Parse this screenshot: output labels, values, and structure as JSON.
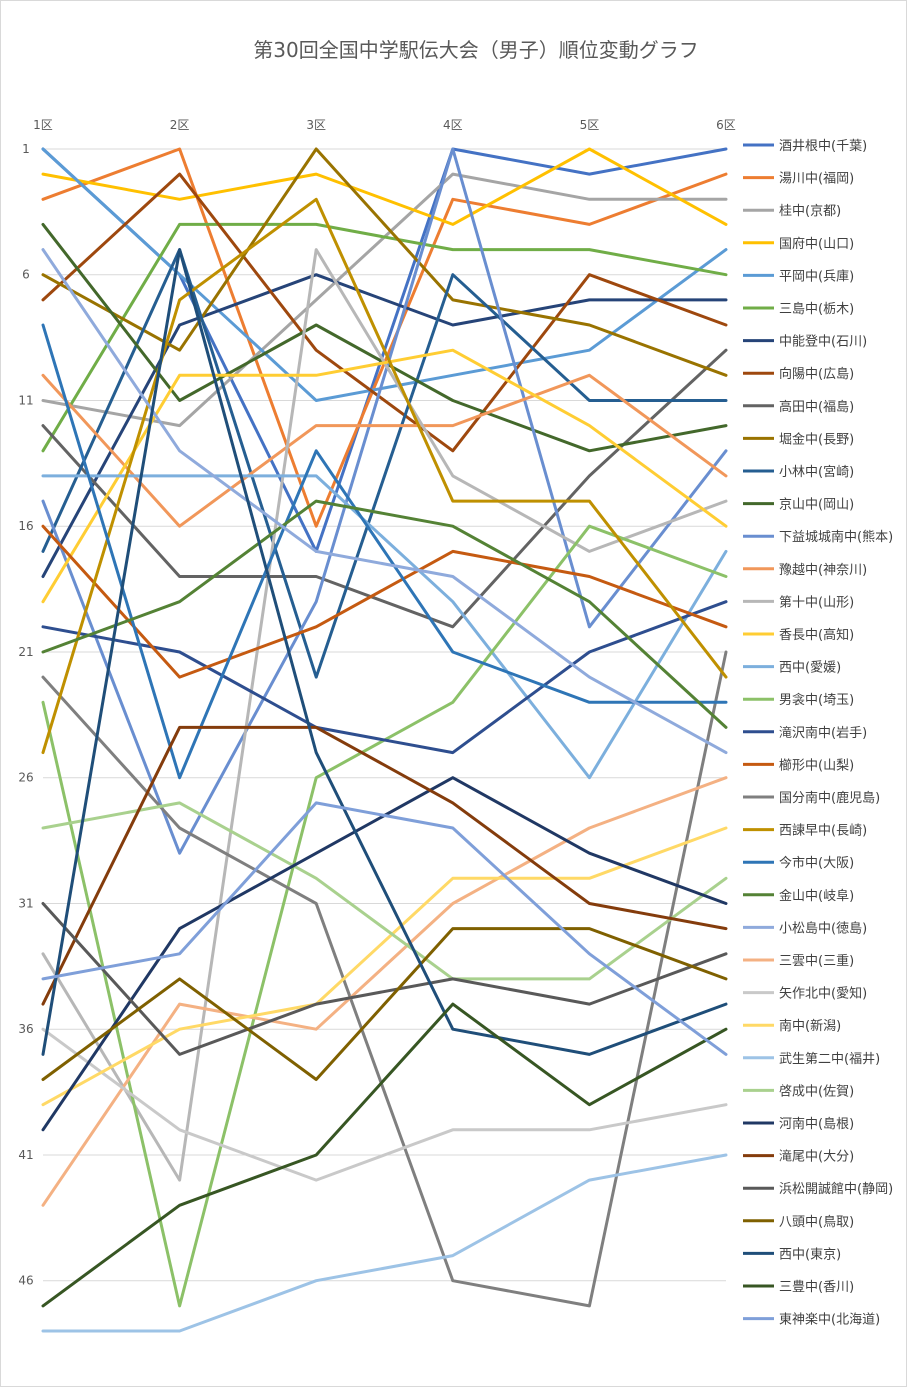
{
  "chart_data": {
    "type": "line",
    "title": "第30回全国中学駅伝大会（男子）順位変動グラフ",
    "categories": [
      "1区",
      "2区",
      "3区",
      "4区",
      "5区",
      "6区"
    ],
    "y_ticks": [
      1,
      6,
      11,
      16,
      21,
      26,
      31,
      36,
      41,
      46
    ],
    "ylim": [
      1,
      48
    ],
    "y_inverted": true,
    "grid": true,
    "legend": "right",
    "series": [
      {
        "name": "酒井根中(千葉)",
        "color": "#4472C4",
        "values": [
          1,
          6,
          17,
          1,
          2,
          1
        ]
      },
      {
        "name": "湯川中(福岡)",
        "color": "#ED7D31",
        "values": [
          3,
          1,
          16,
          3,
          4,
          2
        ]
      },
      {
        "name": "桂中(京都)",
        "color": "#A5A5A5",
        "values": [
          11,
          12,
          7,
          2,
          3,
          3
        ]
      },
      {
        "name": "国府中(山口)",
        "color": "#FFC000",
        "values": [
          2,
          3,
          2,
          4,
          1,
          4
        ]
      },
      {
        "name": "平岡中(兵庫)",
        "color": "#5B9BD5",
        "values": [
          1,
          6,
          11,
          10,
          9,
          5
        ]
      },
      {
        "name": "三島中(栃木)",
        "color": "#70AD47",
        "values": [
          13,
          4,
          4,
          5,
          5,
          6
        ]
      },
      {
        "name": "中能登中(石川)",
        "color": "#264478",
        "values": [
          18,
          8,
          6,
          8,
          7,
          7
        ]
      },
      {
        "name": "向陽中(広島)",
        "color": "#9E480E",
        "values": [
          7,
          2,
          9,
          13,
          6,
          8
        ]
      },
      {
        "name": "高田中(福島)",
        "color": "#636363",
        "values": [
          12,
          18,
          18,
          20,
          14,
          9
        ]
      },
      {
        "name": "堀金中(長野)",
        "color": "#997300",
        "values": [
          6,
          9,
          1,
          7,
          8,
          10
        ]
      },
      {
        "name": "小林中(宮崎)",
        "color": "#255E91",
        "values": [
          17,
          5,
          22,
          6,
          11,
          11
        ]
      },
      {
        "name": "京山中(岡山)",
        "color": "#43682B",
        "values": [
          4,
          11,
          8,
          11,
          13,
          12
        ]
      },
      {
        "name": "下益城城南中(熊本)",
        "color": "#698ED0",
        "values": [
          15,
          29,
          19,
          1,
          20,
          13
        ]
      },
      {
        "name": "豫越中(神奈川)",
        "color": "#F1975A",
        "values": [
          10,
          16,
          12,
          12,
          10,
          14
        ]
      },
      {
        "name": "第十中(山形)",
        "color": "#B7B7B7",
        "values": [
          33,
          42,
          5,
          14,
          17,
          15
        ]
      },
      {
        "name": "香長中(高知)",
        "color": "#FFCD33",
        "values": [
          19,
          10,
          10,
          9,
          12,
          16
        ]
      },
      {
        "name": "西中(愛媛)",
        "color": "#7CAFDD",
        "values": [
          14,
          14,
          14,
          19,
          26,
          17
        ]
      },
      {
        "name": "男衾中(埼玉)",
        "color": "#8CC168",
        "values": [
          23,
          47,
          26,
          23,
          16,
          18
        ]
      },
      {
        "name": "滝沢南中(岩手)",
        "color": "#2E4E8F",
        "values": [
          20,
          21,
          24,
          25,
          21,
          19
        ]
      },
      {
        "name": "櫛形中(山梨)",
        "color": "#C55A11",
        "values": [
          16,
          22,
          20,
          17,
          18,
          20
        ]
      },
      {
        "name": "国分南中(鹿児島)",
        "color": "#7F7F7F",
        "values": [
          22,
          28,
          31,
          46,
          47,
          21
        ]
      },
      {
        "name": "西諫早中(長崎)",
        "color": "#BF9000",
        "values": [
          25,
          7,
          3,
          15,
          15,
          22
        ]
      },
      {
        "name": "今市中(大阪)",
        "color": "#2E75B6",
        "values": [
          8,
          26,
          13,
          21,
          23,
          23
        ]
      },
      {
        "name": "金山中(岐阜)",
        "color": "#548235",
        "values": [
          21,
          19,
          15,
          16,
          19,
          24
        ]
      },
      {
        "name": "小松島中(徳島)",
        "color": "#8FAADC",
        "values": [
          5,
          13,
          17,
          18,
          22,
          25
        ]
      },
      {
        "name": "三雲中(三重)",
        "color": "#F4B183",
        "values": [
          43,
          35,
          36,
          31,
          28,
          26
        ]
      },
      {
        "name": "矢作北中(愛知)",
        "color": "#C9C9C9",
        "values": [
          36,
          40,
          42,
          40,
          40,
          39
        ]
      },
      {
        "name": "南中(新潟)",
        "color": "#FFD966",
        "values": [
          39,
          36,
          35,
          30,
          30,
          28
        ]
      },
      {
        "name": "武生第二中(福井)",
        "color": "#9DC3E6",
        "values": [
          48,
          48,
          46,
          45,
          42,
          41
        ]
      },
      {
        "name": "啓成中(佐賀)",
        "color": "#A9D18E",
        "values": [
          28,
          27,
          30,
          34,
          34,
          30
        ]
      },
      {
        "name": "河南中(島根)",
        "color": "#203864",
        "values": [
          40,
          32,
          29,
          26,
          29,
          31
        ]
      },
      {
        "name": "滝尾中(大分)",
        "color": "#843C0C",
        "values": [
          35,
          24,
          24,
          27,
          31,
          32
        ]
      },
      {
        "name": "浜松開誠館中(静岡)",
        "color": "#595959",
        "values": [
          31,
          37,
          35,
          34,
          35,
          33
        ]
      },
      {
        "name": "八頭中(鳥取)",
        "color": "#7F6000",
        "values": [
          38,
          34,
          38,
          32,
          32,
          34
        ]
      },
      {
        "name": "西中(東京)",
        "color": "#1F4E79",
        "values": [
          37,
          5,
          25,
          36,
          37,
          35
        ]
      },
      {
        "name": "三豊中(香川)",
        "color": "#375623",
        "values": [
          47,
          43,
          41,
          35,
          39,
          36
        ]
      },
      {
        "name": "東神楽中(北海道)",
        "color": "#7F9FD9",
        "values": [
          34,
          33,
          27,
          28,
          33,
          37
        ]
      }
    ]
  }
}
